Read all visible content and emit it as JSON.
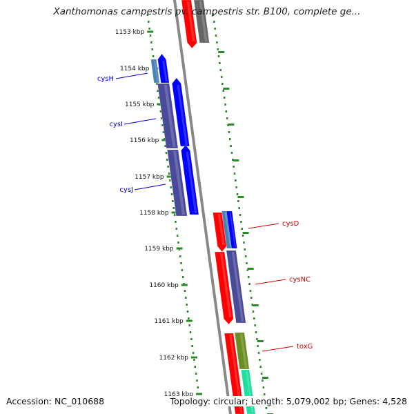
{
  "title": "Xanthomonas campestris pv. campestris str. B100, complete ge...",
  "footer": {
    "accession": "Accession: NC_010688",
    "summary": "Topology: circular; Length: 5,079,002 bp; Genes: 4,528"
  },
  "colors": {
    "backbone": "#888888",
    "ticks": "#2a8a2a",
    "forward_gene_label": "#0000cc",
    "reverse_gene_label": "#cc0000",
    "forward_cds": "#0000ff",
    "reverse_cds": "#ff0000",
    "gene_dark": "#4a4a9a",
    "unknown": "#666666",
    "olive": "#6b8e23",
    "teal": "#22dda0",
    "light_blue": "#4682b4"
  },
  "scale": {
    "start_kbp": 1153,
    "end_kbp": 1163,
    "tick_labels": [
      "1153 kbp",
      "1154 kbp",
      "1155 kbp",
      "1156 kbp",
      "1157 kbp",
      "1158 kbp",
      "1159 kbp",
      "1160 kbp",
      "1161 kbp",
      "1162 kbp",
      "1163 kbp"
    ]
  },
  "gene_labels": [
    {
      "name": "cysH",
      "strand": "forward"
    },
    {
      "name": "cysI",
      "strand": "forward"
    },
    {
      "name": "cysJ",
      "strand": "forward"
    },
    {
      "name": "cysD",
      "strand": "reverse"
    },
    {
      "name": "cysNC",
      "strand": "reverse"
    },
    {
      "name": "toxG",
      "strand": "reverse"
    }
  ]
}
